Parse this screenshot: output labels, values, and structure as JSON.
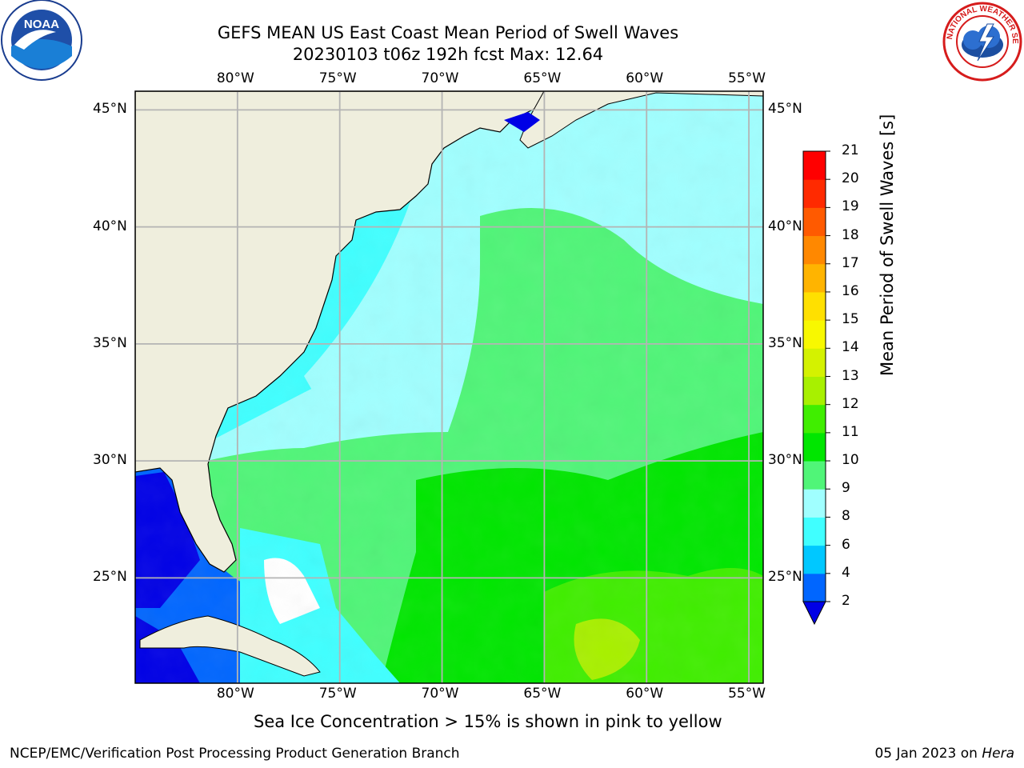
{
  "title": {
    "line1": "GEFS MEAN US East Coast Mean Period of Swell Waves",
    "line2": "20230103 t06z 192h fcst   Max: 12.64"
  },
  "axes": {
    "lon_labels": [
      "80°W",
      "75°W",
      "70°W",
      "65°W",
      "60°W",
      "55°W"
    ],
    "lat_labels_left": [
      "45°N",
      "40°N",
      "35°N",
      "30°N",
      "25°N"
    ],
    "lat_labels_right": [
      "45°N",
      "40°N",
      "35°N",
      "30°N",
      "25°N"
    ],
    "lon_values": [
      -80,
      -75,
      -70,
      -65,
      -60,
      -55
    ],
    "lat_values": [
      45,
      40,
      35,
      30,
      25
    ],
    "lon_range": [
      -85,
      -54.3
    ],
    "lat_range": [
      20.5,
      45.8
    ]
  },
  "colorbar": {
    "label": "Mean Period of Swell Waves [s]",
    "ticks": [
      "2",
      "4",
      "6",
      "8",
      "9",
      "10",
      "11",
      "12",
      "13",
      "14",
      "15",
      "16",
      "17",
      "18",
      "19",
      "20",
      "21"
    ],
    "colors": [
      "#0066ff",
      "#00c8ff",
      "#40ffff",
      "#a0ffff",
      "#50f578",
      "#00e600",
      "#40ee00",
      "#a8f000",
      "#d4f200",
      "#f8f800",
      "#ffe000",
      "#ffb400",
      "#ff8800",
      "#ff5a00",
      "#ff2a00",
      "#ff0000"
    ],
    "under_color": "#0000e6"
  },
  "note": "Sea Ice Concentration > 15% is shown in pink to yellow",
  "footer": {
    "left": "NCEP/EMC/Verification Post Processing Product Generation Branch",
    "right_date": "05 Jan 2023 on",
    "right_machine": "Hera"
  },
  "colors": {
    "land": "#efeedd",
    "grid": "#b4b4b4",
    "no_data": "#ffffff"
  },
  "logos": {
    "left": "NOAA",
    "right": "NATIONAL WEATHER SERVICE"
  }
}
